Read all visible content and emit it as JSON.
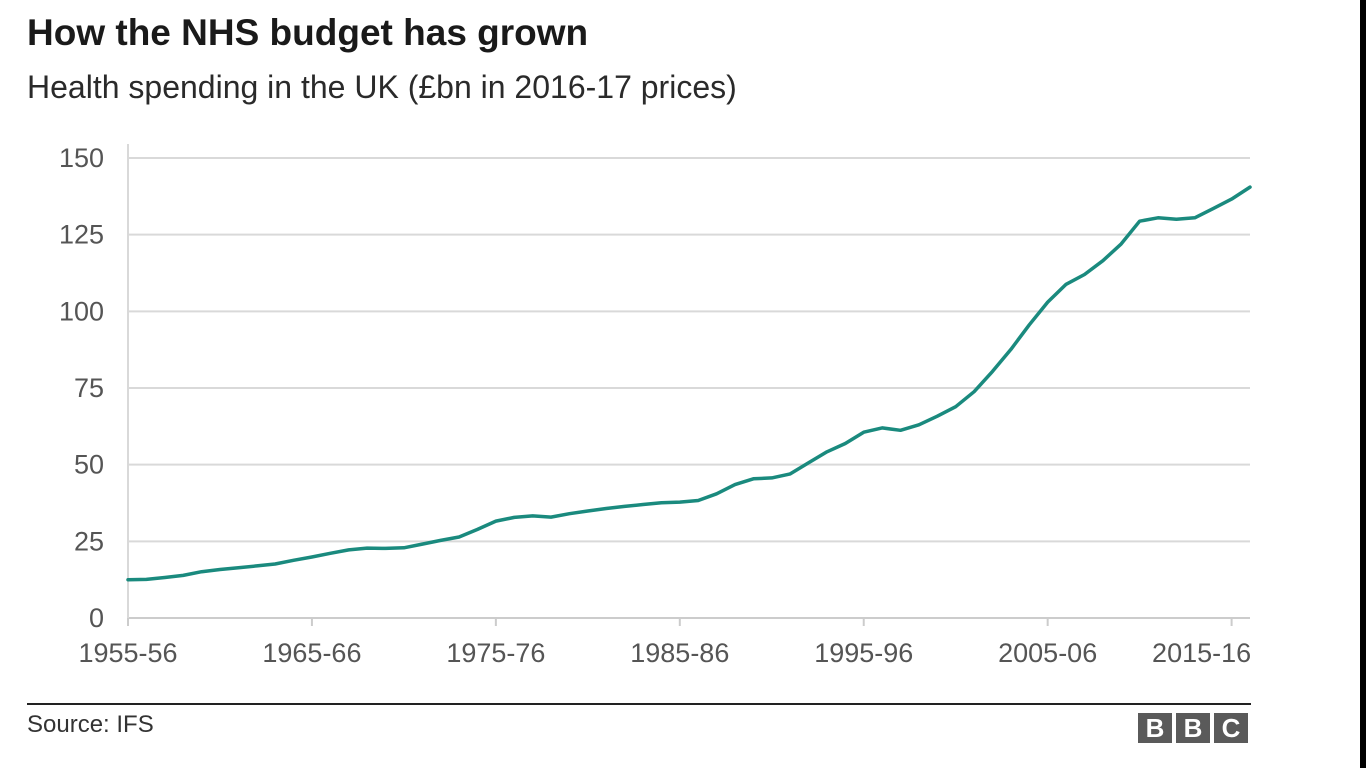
{
  "chart_data": {
    "type": "line",
    "title": "How the NHS budget has grown",
    "subtitle": "Health spending in the UK (£bn in 2016-17 prices)",
    "xlabel": "",
    "ylabel": "",
    "ylim": [
      0,
      150
    ],
    "yticks": [
      "0",
      "25",
      "50",
      "75",
      "100",
      "125",
      "150"
    ],
    "xticks": [
      "1955-56",
      "1965-66",
      "1975-76",
      "1985-86",
      "1995-96",
      "2005-06",
      "2015-16"
    ],
    "x_start_year": 1955,
    "grid": true,
    "line_color": "#1a8a7e",
    "series": [
      {
        "name": "Health spending",
        "values": [
          12.5,
          12.6,
          13.2,
          13.9,
          15.1,
          15.8,
          16.4,
          17.0,
          17.6,
          18.8,
          19.9,
          21.1,
          22.2,
          22.8,
          22.7,
          22.9,
          24.1,
          25.3,
          26.4,
          28.9,
          31.6,
          32.8,
          33.3,
          32.9,
          34.0,
          34.9,
          35.7,
          36.4,
          37.0,
          37.6,
          37.8,
          38.3,
          40.5,
          43.5,
          45.4,
          45.7,
          47.0,
          50.6,
          54.2,
          56.9,
          60.6,
          62.0,
          61.2,
          63.0,
          65.8,
          68.9,
          73.8,
          80.4,
          87.6,
          95.6,
          103.0,
          108.8,
          112.0,
          116.5,
          122.0,
          129.4,
          130.5,
          130.0,
          130.5,
          133.5,
          136.6,
          140.5
        ]
      }
    ]
  },
  "footer": {
    "source": "Source: IFS",
    "logo": [
      "B",
      "B",
      "C"
    ]
  },
  "colors": {
    "grid": "#d9d9d9",
    "axis": "#cccccc",
    "tick_text": "#555555",
    "logo_bg": "#5a5a5a"
  }
}
